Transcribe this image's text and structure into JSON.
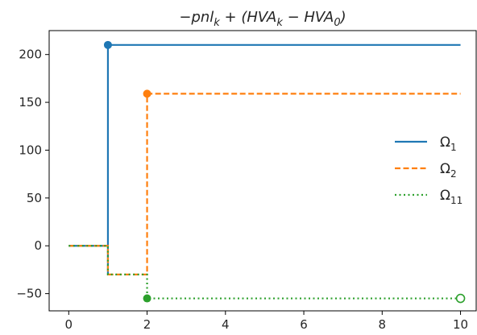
{
  "chart_data": {
    "type": "line",
    "title": "−pnl_k + (HVA_k − HVA_0)",
    "title_parts": {
      "prefix": "−pnl",
      "k1": "k",
      "middle": " + (HVA",
      "k2": "k",
      "minus": " − HVA",
      "zero": "0",
      "suffix": ")"
    },
    "xlabel": "",
    "ylabel": "",
    "xlim": [
      -0.5,
      10.4
    ],
    "ylim": [
      -68,
      225
    ],
    "xticks": [
      0,
      2,
      4,
      6,
      8,
      10
    ],
    "yticks": [
      -50,
      0,
      50,
      100,
      150,
      200
    ],
    "grid": false,
    "legend_position": "right",
    "series": [
      {
        "name": "Ω1",
        "name_base": "Ω",
        "name_sub": "1",
        "style": "solid",
        "color": "#1f77b4",
        "steps": [
          [
            0,
            0
          ],
          [
            1,
            0
          ],
          [
            1,
            -30
          ],
          [
            1,
            210
          ],
          [
            10,
            210
          ]
        ],
        "marker_filled": [
          1,
          210
        ]
      },
      {
        "name": "Ω2",
        "name_base": "Ω",
        "name_sub": "2",
        "style": "dashed",
        "color": "#ff7f0e",
        "steps": [
          [
            0,
            0
          ],
          [
            1,
            0
          ],
          [
            1,
            -30
          ],
          [
            2,
            -30
          ],
          [
            2,
            159
          ],
          [
            10,
            159
          ]
        ],
        "marker_filled": [
          2,
          159
        ]
      },
      {
        "name": "Ω11",
        "name_base": "Ω",
        "name_sub": "11",
        "style": "dotted",
        "color": "#2ca02c",
        "steps": [
          [
            0,
            0
          ],
          [
            1,
            0
          ],
          [
            1,
            -30
          ],
          [
            2,
            -30
          ],
          [
            2,
            -55
          ],
          [
            10,
            -55
          ]
        ],
        "marker_filled": [
          2,
          -55
        ],
        "marker_open": [
          10,
          -55
        ]
      }
    ]
  }
}
